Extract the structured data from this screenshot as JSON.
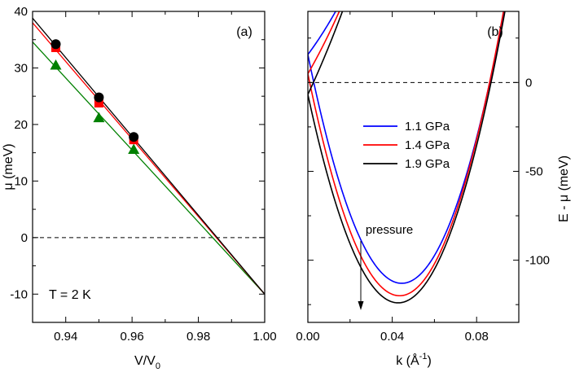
{
  "chart_data": [
    {
      "panel_label": "(a)",
      "type": "scatter",
      "xlabel": "V/V0",
      "xlabel_main": "V/V",
      "xlabel_sub": "0",
      "ylabel": "μ (meV)",
      "xlim": [
        0.93,
        1.0
      ],
      "ylim": [
        -15,
        40
      ],
      "xticks": [
        "0.94",
        "0.96",
        "0.98",
        "1.00"
      ],
      "xtick_values": [
        0.94,
        0.96,
        0.98,
        1.0
      ],
      "yticks": [
        "-10",
        "0",
        "10",
        "20",
        "30",
        "40"
      ],
      "ytick_values": [
        -10,
        0,
        10,
        20,
        30,
        40
      ],
      "annotation": "T = 2 K",
      "reference_line": {
        "y": 0,
        "style": "dashed"
      },
      "series": [
        {
          "color": "#000000",
          "marker": "circle",
          "x": [
            0.937,
            0.95,
            0.9605
          ],
          "y": [
            34.2,
            24.8,
            17.8
          ],
          "fit": {
            "x": [
              0.93,
              1.0
            ],
            "y": [
              38.8,
              -10.0
            ]
          }
        },
        {
          "color": "#ff0000",
          "marker": "square",
          "x": [
            0.937,
            0.95,
            0.9605
          ],
          "y": [
            33.6,
            23.8,
            17.3
          ],
          "fit": {
            "x": [
              0.93,
              1.0
            ],
            "y": [
              38.0,
              -10.0
            ]
          }
        },
        {
          "color": "#008000",
          "marker": "triangle",
          "x": [
            0.937,
            0.95,
            0.9605
          ],
          "y": [
            30.5,
            21.2,
            15.6
          ],
          "fit": {
            "x": [
              0.93,
              1.0
            ],
            "y": [
              34.6,
              -10.0
            ]
          }
        }
      ]
    },
    {
      "panel_label": "(b)",
      "type": "line",
      "xlabel": "k (Å⁻¹)",
      "xlabel_main": "k (Å",
      "xlabel_sup": "-1",
      "xlabel_end": ")",
      "ylabel": "E - μ (meV)",
      "xlim": [
        0.0,
        0.1
      ],
      "ylim": [
        -135,
        40
      ],
      "xticks": [
        "0.00",
        "0.04",
        "0.08"
      ],
      "xtick_values": [
        0.0,
        0.04,
        0.08
      ],
      "yticks": [
        "-100",
        "-50",
        "0"
      ],
      "ytick_values": [
        -100,
        -50,
        0
      ],
      "annotation": "pressure",
      "reference_line": {
        "y": 0,
        "style": "dashed"
      },
      "series": [
        {
          "name": "1.1 GPa",
          "color": "#0000ff",
          "k0": 0.0445,
          "emin": -113,
          "a": 65000,
          "kcross": 0.0185
        },
        {
          "name": "1.4 GPa",
          "color": "#ff0000",
          "k0": 0.0435,
          "emin": -120,
          "a": 66000,
          "kcross": 0.0195
        },
        {
          "name": "1.9 GPa",
          "color": "#000000",
          "k0": 0.0428,
          "emin": -124,
          "a": 64000,
          "kcross": 0.0205
        }
      ]
    }
  ]
}
